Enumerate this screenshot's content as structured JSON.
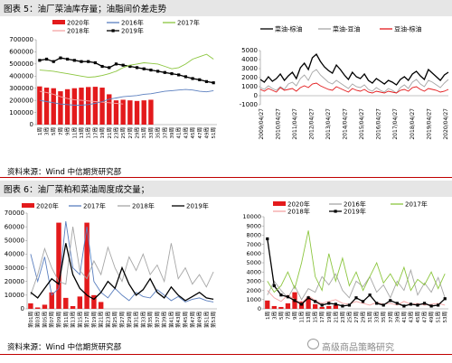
{
  "figure5": {
    "heading": "图表 5：油厂菜油库存量；油脂间价差走势",
    "source": "资料来源：Wind 中信期货研究部"
  },
  "figure6": {
    "heading": "图表 6：油厂菜粕和菜油周度成交量；",
    "source": "资料来源：Wind 中信期货研究部"
  },
  "watermark": "高级商品策略研究",
  "chart_data": [
    {
      "id": "c1",
      "type": "bar",
      "title": "",
      "ylim": [
        0,
        700000
      ],
      "yticks": [
        0,
        100000,
        200000,
        300000,
        400000,
        500000,
        600000,
        700000
      ],
      "categories": [
        "1周",
        "3周",
        "5周",
        "7周",
        "9周",
        "11周",
        "13周",
        "15周",
        "17周",
        "19周",
        "21周",
        "23周",
        "25周",
        "27周",
        "29周",
        "31周",
        "33周",
        "35周",
        "37周",
        "39周",
        "41周",
        "43周",
        "45周",
        "47周",
        "49周",
        "51周"
      ],
      "series": [
        {
          "name": "2020年",
          "type": "bar",
          "color": "#e31a1c",
          "values": [
            315000,
            305000,
            300000,
            275000,
            292000,
            300000,
            305000,
            310000,
            312000,
            305000,
            250000,
            200000,
            205000,
            200000,
            195000,
            200000,
            205000,
            null,
            null,
            null,
            null,
            null,
            null,
            null,
            null,
            null
          ]
        },
        {
          "name": "2018年",
          "type": "line",
          "color": "#f4a4a4",
          "values": [
            275000,
            265000,
            250000,
            230000,
            215000,
            205000,
            200000,
            195000,
            190000,
            185000,
            180000,
            175000,
            170000,
            null,
            null,
            null,
            null,
            null,
            null,
            null,
            null,
            null,
            null,
            null,
            null,
            null
          ]
        },
        {
          "name": "2016年",
          "type": "line",
          "color": "#5b7fbf",
          "values": [
            200000,
            190000,
            180000,
            170000,
            165000,
            160000,
            160000,
            165000,
            175000,
            190000,
            210000,
            220000,
            230000,
            235000,
            240000,
            250000,
            255000,
            265000,
            275000,
            280000,
            285000,
            290000,
            285000,
            275000,
            270000,
            280000
          ]
        },
        {
          "name": "2019年",
          "type": "line",
          "color": "#000000",
          "values": [
            530000,
            540000,
            520000,
            550000,
            540000,
            530000,
            520000,
            520000,
            510000,
            480000,
            470000,
            500000,
            490000,
            480000,
            470000,
            460000,
            450000,
            440000,
            430000,
            420000,
            410000,
            395000,
            380000,
            370000,
            355000,
            345000
          ]
        },
        {
          "name": "2017年",
          "type": "line",
          "color": "#8cc63f",
          "values": [
            450000,
            445000,
            440000,
            430000,
            420000,
            410000,
            400000,
            390000,
            395000,
            405000,
            420000,
            440000,
            470000,
            490000,
            500000,
            510000,
            505000,
            500000,
            480000,
            460000,
            470000,
            500000,
            540000,
            560000,
            580000,
            540000
          ]
        }
      ]
    },
    {
      "id": "c2",
      "type": "line",
      "title": "",
      "ylim": [
        -1000,
        5000
      ],
      "yticks": [
        -1000,
        0,
        1000,
        2000,
        3000,
        4000,
        5000
      ],
      "xticklabels": [
        "2009/04/27",
        "2010/04/27",
        "2011/04/27",
        "2012/04/27",
        "2013/04/27",
        "2014/04/27",
        "2015/04/27",
        "2016/04/27",
        "2017/04/27",
        "2018/04/27",
        "2019/04/27",
        "2020/04/27"
      ],
      "series": [
        {
          "name": "菜油-棕油",
          "color": "#000000",
          "values": [
            1800,
            1500,
            2100,
            1600,
            1900,
            2400,
            1700,
            2200,
            2600,
            1900,
            3100,
            3600,
            2900,
            4200,
            4600,
            3800,
            3200,
            2800,
            2500,
            3400,
            2900,
            2300,
            1800,
            2600,
            2100,
            1900,
            2400,
            1700,
            1400,
            1900,
            1600,
            1300,
            1700,
            1500,
            1200,
            1800,
            2100,
            1700,
            2400,
            2700,
            2200,
            1800,
            2900,
            2500,
            2100,
            1700,
            2300,
            2600
          ]
        },
        {
          "name": "菜油-豆油",
          "color": "#a6a6a6",
          "values": [
            900,
            700,
            1100,
            800,
            600,
            1000,
            700,
            1300,
            1500,
            1100,
            1900,
            2300,
            1700,
            2600,
            2900,
            2300,
            1900,
            1500,
            1300,
            1700,
            1400,
            1100,
            800,
            1300,
            1000,
            900,
            1200,
            700,
            500,
            900,
            600,
            400,
            800,
            600,
            300,
            900,
            1200,
            800,
            1500,
            1800,
            1300,
            1000,
            1700,
            1500,
            1200,
            900,
            1400,
            1800
          ]
        },
        {
          "name": "豆油-棕油",
          "color": "#e31a1c",
          "values": [
            700,
            500,
            800,
            600,
            400,
            900,
            600,
            700,
            800,
            500,
            900,
            1100,
            900,
            1300,
            1400,
            1100,
            900,
            700,
            600,
            1000,
            800,
            600,
            400,
            800,
            600,
            500,
            700,
            400,
            300,
            500,
            400,
            300,
            500,
            400,
            300,
            600,
            700,
            500,
            900,
            1000,
            700,
            500,
            800,
            700,
            600,
            400,
            500,
            700
          ]
        }
      ]
    },
    {
      "id": "c3",
      "type": "bar",
      "title": "",
      "ylim": [
        0,
        70000
      ],
      "yticks": [
        0,
        10000,
        20000,
        30000,
        40000,
        50000,
        60000,
        70000
      ],
      "categories": [
        "第01周",
        "第03周",
        "第05周",
        "第07周",
        "第09周",
        "第11周",
        "第13周",
        "第15周",
        "第17周",
        "第19周",
        "第21周",
        "第23周",
        "第25周",
        "第27周",
        "第29周",
        "第31周",
        "第33周",
        "第35周",
        "第37周",
        "第39周",
        "第41周",
        "第43周",
        "第45周",
        "第47周",
        "第49周",
        "第51周",
        "第53周"
      ],
      "series": [
        {
          "name": "2020年",
          "type": "bar",
          "color": "#e31a1c",
          "values": [
            4000,
            1000,
            3000,
            12000,
            63000,
            8000,
            2000,
            9000,
            63000,
            10000,
            5000,
            null,
            null,
            null,
            null,
            null,
            null,
            null,
            null,
            null,
            null,
            null,
            null,
            null,
            null,
            null,
            null
          ]
        },
        {
          "name": "2017年",
          "type": "line",
          "color": "#5b7fbf",
          "values": [
            40000,
            20000,
            38000,
            10000,
            15000,
            64000,
            30000,
            25000,
            60000,
            20000,
            12000,
            8000,
            15000,
            10000,
            6000,
            12000,
            9000,
            8000,
            14000,
            10000,
            6000,
            9000,
            5000,
            7000,
            8000,
            6000,
            5000
          ]
        },
        {
          "name": "2018年",
          "type": "line",
          "color": "#a6a6a6",
          "values": [
            10000,
            25000,
            44000,
            30000,
            20000,
            18000,
            60000,
            28000,
            22000,
            35000,
            25000,
            45000,
            30000,
            20000,
            38000,
            28000,
            40000,
            25000,
            32000,
            20000,
            48000,
            22000,
            30000,
            18000,
            25000,
            16000,
            27000
          ]
        },
        {
          "name": "2019年",
          "type": "line",
          "color": "#000000",
          "values": [
            12000,
            8000,
            15000,
            22000,
            18000,
            48000,
            25000,
            15000,
            10000,
            7000,
            12000,
            20000,
            15000,
            30000,
            18000,
            10000,
            14000,
            22000,
            12000,
            8000,
            16000,
            10000,
            6000,
            9000,
            12000,
            8000,
            7000
          ]
        }
      ]
    },
    {
      "id": "c4",
      "type": "bar",
      "title": "",
      "ylim": [
        0,
        10000
      ],
      "yticks": [
        0,
        1000,
        2000,
        3000,
        4000,
        5000,
        6000,
        7000,
        8000,
        9000,
        10000
      ],
      "categories": [
        "1周",
        "3周",
        "5周",
        "7周",
        "9周",
        "11周",
        "13周",
        "15周",
        "17周",
        "19周",
        "21周",
        "23周",
        "25周",
        "27周",
        "29周",
        "31周",
        "33周",
        "35周",
        "37周",
        "39周",
        "41周",
        "43周",
        "45周",
        "47周",
        "49周",
        "51周",
        "53周"
      ],
      "series": [
        {
          "name": "2020年",
          "type": "bar",
          "color": "#e31a1c",
          "values": [
            900,
            300,
            200,
            600,
            1800,
            800,
            1200,
            500,
            200,
            300,
            400,
            null,
            null,
            null,
            null,
            null,
            null,
            null,
            null,
            null,
            null,
            null,
            null,
            null,
            null,
            null,
            null
          ]
        },
        {
          "name": "2018年",
          "type": "line",
          "color": "#f4a4a4",
          "values": [
            2000,
            1200,
            800,
            1500,
            1000,
            600,
            1400,
            900,
            600,
            800,
            1000,
            600,
            500,
            800,
            600,
            400,
            700,
            500,
            600,
            400,
            800,
            500,
            600,
            400,
            500,
            600,
            400
          ]
        },
        {
          "name": "2016年",
          "type": "line",
          "color": "#a6a6a6",
          "values": [
            1500,
            3000,
            2000,
            1200,
            2500,
            1000,
            2200,
            1800,
            3500,
            2600,
            3800,
            2000,
            1200,
            3000,
            2400,
            3500,
            1800,
            2600,
            1200,
            3000,
            2000,
            4200,
            1500,
            2800,
            1800,
            3400,
            1200
          ]
        },
        {
          "name": "2019年",
          "type": "line",
          "color": "#000000",
          "values": [
            7600,
            2500,
            1500,
            1300,
            900,
            500,
            1200,
            800,
            400,
            600,
            500,
            300,
            400,
            1200,
            800,
            1500,
            600,
            400,
            900,
            600,
            300,
            500,
            400,
            600,
            300,
            400,
            1100
          ]
        },
        {
          "name": "2017年",
          "type": "line",
          "color": "#8cc63f",
          "values": [
            3000,
            1800,
            2500,
            4000,
            2200,
            5000,
            8500,
            3500,
            2000,
            6000,
            3000,
            5500,
            2500,
            4000,
            2000,
            3500,
            5000,
            2800,
            3800,
            2500,
            4500,
            2000,
            3200,
            2600,
            4000,
            2200,
            3800
          ]
        }
      ]
    }
  ]
}
